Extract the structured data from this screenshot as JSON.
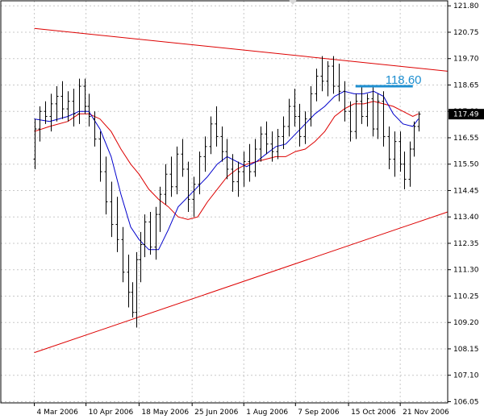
{
  "chart_data": {
    "type": "ohlc",
    "title": "",
    "ylim": [
      106.0,
      122.0
    ],
    "y_ticks": [
      "121.80",
      "120.75",
      "119.70",
      "118.65",
      "117.60",
      "116.55",
      "115.50",
      "114.45",
      "113.40",
      "112.35",
      "111.30",
      "110.25",
      "109.20",
      "108.15",
      "107.10",
      "106.05"
    ],
    "x_ticks": [
      "4 Mar 2006",
      "10 Apr 2006",
      "18 May 2006",
      "25 Jun 2006",
      "1 Aug 2006",
      "7 Sep 2006",
      "15 Oct 2006",
      "21 Nov 2006"
    ],
    "current_price": "117.49",
    "level_label": "118.60",
    "level_value": 118.6,
    "grid": true,
    "colors": {
      "bars": "#000000",
      "ma_fast": "#0000cc",
      "ma_slow": "#dd0000",
      "trendline": "#dd0000",
      "level": "#1e8fd0",
      "price_box": "#000000"
    },
    "trendlines": [
      {
        "name": "upper",
        "from": {
          "date": "2006-03-04",
          "value": 120.9
        },
        "to": {
          "date": "2006-12-25",
          "value": 119.2
        }
      },
      {
        "name": "lower",
        "from": {
          "date": "2006-03-04",
          "value": 108.0
        },
        "to": {
          "date": "2006-12-25",
          "value": 113.6
        }
      }
    ],
    "level_line": {
      "from": "2006-10-20",
      "to": "2006-11-30",
      "value": 118.6
    },
    "series": [
      {
        "name": "",
        "kind": "ma_fast",
        "points": [
          [
            "2006-03-04",
            117.3
          ],
          [
            "2006-03-15",
            117.2
          ],
          [
            "2006-03-28",
            117.4
          ],
          [
            "2006-04-05",
            117.6
          ],
          [
            "2006-04-12",
            117.6
          ],
          [
            "2006-04-20",
            116.9
          ],
          [
            "2006-04-28",
            115.8
          ],
          [
            "2006-05-05",
            114.3
          ],
          [
            "2006-05-12",
            113.0
          ],
          [
            "2006-05-18",
            112.5
          ],
          [
            "2006-05-25",
            112.1
          ],
          [
            "2006-06-01",
            112.1
          ],
          [
            "2006-06-08",
            112.9
          ],
          [
            "2006-06-15",
            113.8
          ],
          [
            "2006-06-22",
            114.2
          ],
          [
            "2006-06-29",
            114.6
          ],
          [
            "2006-07-06",
            115.0
          ],
          [
            "2006-07-13",
            115.5
          ],
          [
            "2006-07-20",
            115.8
          ],
          [
            "2006-07-27",
            115.6
          ],
          [
            "2006-08-03",
            115.4
          ],
          [
            "2006-08-10",
            115.6
          ],
          [
            "2006-08-17",
            115.9
          ],
          [
            "2006-08-24",
            116.2
          ],
          [
            "2006-08-31",
            116.3
          ],
          [
            "2006-09-07",
            116.7
          ],
          [
            "2006-09-14",
            117.1
          ],
          [
            "2006-09-21",
            117.5
          ],
          [
            "2006-09-28",
            117.8
          ],
          [
            "2006-10-05",
            118.2
          ],
          [
            "2006-10-12",
            118.4
          ],
          [
            "2006-10-19",
            118.3
          ],
          [
            "2006-10-26",
            118.3
          ],
          [
            "2006-11-02",
            118.4
          ],
          [
            "2006-11-09",
            118.2
          ],
          [
            "2006-11-16",
            117.5
          ],
          [
            "2006-11-23",
            117.1
          ],
          [
            "2006-11-30",
            117.0
          ],
          [
            "2006-12-04",
            117.3
          ]
        ]
      },
      {
        "name": "",
        "kind": "ma_slow",
        "points": [
          [
            "2006-03-04",
            116.8
          ],
          [
            "2006-03-15",
            117.0
          ],
          [
            "2006-03-28",
            117.2
          ],
          [
            "2006-04-05",
            117.5
          ],
          [
            "2006-04-12",
            117.5
          ],
          [
            "2006-04-20",
            117.3
          ],
          [
            "2006-04-28",
            116.8
          ],
          [
            "2006-05-05",
            116.1
          ],
          [
            "2006-05-12",
            115.5
          ],
          [
            "2006-05-18",
            115.1
          ],
          [
            "2006-05-25",
            114.5
          ],
          [
            "2006-06-01",
            114.1
          ],
          [
            "2006-06-08",
            113.8
          ],
          [
            "2006-06-15",
            113.4
          ],
          [
            "2006-06-22",
            113.3
          ],
          [
            "2006-06-29",
            113.4
          ],
          [
            "2006-07-06",
            114.0
          ],
          [
            "2006-07-13",
            114.5
          ],
          [
            "2006-07-20",
            115.0
          ],
          [
            "2006-07-27",
            115.3
          ],
          [
            "2006-08-03",
            115.5
          ],
          [
            "2006-08-10",
            115.6
          ],
          [
            "2006-08-17",
            115.7
          ],
          [
            "2006-08-24",
            115.8
          ],
          [
            "2006-08-31",
            115.8
          ],
          [
            "2006-09-07",
            116.0
          ],
          [
            "2006-09-14",
            116.1
          ],
          [
            "2006-09-21",
            116.4
          ],
          [
            "2006-09-28",
            116.8
          ],
          [
            "2006-10-05",
            117.4
          ],
          [
            "2006-10-12",
            117.7
          ],
          [
            "2006-10-19",
            117.9
          ],
          [
            "2006-10-26",
            117.9
          ],
          [
            "2006-11-02",
            118.0
          ],
          [
            "2006-11-09",
            117.9
          ],
          [
            "2006-11-16",
            117.8
          ],
          [
            "2006-11-23",
            117.6
          ],
          [
            "2006-11-30",
            117.4
          ],
          [
            "2006-12-04",
            117.5
          ]
        ]
      },
      {
        "name": "",
        "kind": "ohlc",
        "columns": [
          "date",
          "open",
          "high",
          "low",
          "close"
        ],
        "points": [
          [
            "2006-03-04",
            115.7,
            117.3,
            115.3,
            116.9
          ],
          [
            "2006-03-08",
            116.9,
            117.8,
            116.4,
            117.6
          ],
          [
            "2006-03-12",
            117.6,
            118.0,
            117.1,
            117.4
          ],
          [
            "2006-03-16",
            117.4,
            118.3,
            116.8,
            117.9
          ],
          [
            "2006-03-20",
            117.9,
            118.6,
            117.2,
            118.2
          ],
          [
            "2006-03-24",
            118.2,
            118.8,
            117.3,
            117.7
          ],
          [
            "2006-03-28",
            117.7,
            118.4,
            117.2,
            118.0
          ],
          [
            "2006-04-01",
            118.0,
            118.5,
            117.0,
            117.5
          ],
          [
            "2006-04-05",
            117.5,
            118.9,
            117.1,
            118.6
          ],
          [
            "2006-04-09",
            118.6,
            118.9,
            117.5,
            117.8
          ],
          [
            "2006-04-12",
            117.8,
            118.3,
            117.0,
            117.4
          ],
          [
            "2006-04-16",
            117.3,
            117.6,
            116.2,
            116.5
          ],
          [
            "2006-04-20",
            116.5,
            116.8,
            114.8,
            115.2
          ],
          [
            "2006-04-24",
            115.2,
            115.8,
            113.5,
            114.0
          ],
          [
            "2006-04-28",
            114.0,
            114.8,
            112.6,
            113.1
          ],
          [
            "2006-05-02",
            113.1,
            114.2,
            112.0,
            112.5
          ],
          [
            "2006-05-06",
            112.5,
            113.0,
            110.8,
            111.2
          ],
          [
            "2006-05-10",
            111.2,
            111.9,
            109.8,
            110.4
          ],
          [
            "2006-05-13",
            110.4,
            110.8,
            109.4,
            109.6
          ],
          [
            "2006-05-16",
            109.6,
            112.0,
            109.0,
            111.7
          ],
          [
            "2006-05-19",
            111.7,
            112.8,
            110.8,
            112.3
          ],
          [
            "2006-05-22",
            112.3,
            113.5,
            111.8,
            113.2
          ],
          [
            "2006-05-26",
            113.2,
            113.6,
            111.9,
            112.2
          ],
          [
            "2006-05-30",
            112.2,
            113.8,
            111.7,
            113.5
          ],
          [
            "2006-06-02",
            113.5,
            114.6,
            112.8,
            114.3
          ],
          [
            "2006-06-06",
            114.3,
            115.5,
            113.9,
            115.1
          ],
          [
            "2006-06-10",
            115.1,
            115.8,
            114.2,
            114.6
          ],
          [
            "2006-06-14",
            114.6,
            116.2,
            114.3,
            115.9
          ],
          [
            "2006-06-18",
            115.9,
            116.5,
            115.0,
            115.3
          ],
          [
            "2006-06-22",
            115.3,
            115.6,
            113.6,
            114.1
          ],
          [
            "2006-06-26",
            114.1,
            115.0,
            113.4,
            114.7
          ],
          [
            "2006-06-30",
            114.7,
            116.0,
            114.3,
            115.8
          ],
          [
            "2006-07-04",
            115.8,
            116.6,
            115.2,
            116.2
          ],
          [
            "2006-07-08",
            116.2,
            117.4,
            115.9,
            117.1
          ],
          [
            "2006-07-12",
            117.1,
            117.8,
            116.2,
            116.6
          ],
          [
            "2006-07-16",
            116.6,
            117.0,
            115.6,
            116.0
          ],
          [
            "2006-07-20",
            116.0,
            116.5,
            114.9,
            115.3
          ],
          [
            "2006-07-24",
            115.3,
            115.9,
            114.4,
            114.8
          ],
          [
            "2006-07-28",
            114.8,
            115.6,
            114.2,
            115.2
          ],
          [
            "2006-08-01",
            115.2,
            116.0,
            114.6,
            115.6
          ],
          [
            "2006-08-05",
            115.6,
            116.3,
            114.8,
            115.2
          ],
          [
            "2006-08-09",
            115.2,
            116.5,
            115.0,
            116.1
          ],
          [
            "2006-08-13",
            116.1,
            117.0,
            115.6,
            116.7
          ],
          [
            "2006-08-17",
            116.7,
            117.2,
            115.9,
            116.3
          ],
          [
            "2006-08-21",
            116.3,
            116.8,
            115.6,
            116.0
          ],
          [
            "2006-08-25",
            116.0,
            116.9,
            115.7,
            116.6
          ],
          [
            "2006-08-29",
            116.6,
            117.4,
            116.1,
            117.0
          ],
          [
            "2006-09-02",
            117.0,
            118.1,
            116.6,
            117.8
          ],
          [
            "2006-09-06",
            117.8,
            118.5,
            117.0,
            117.4
          ],
          [
            "2006-09-10",
            117.4,
            117.9,
            116.2,
            116.6
          ],
          [
            "2006-09-14",
            116.6,
            117.6,
            116.3,
            117.3
          ],
          [
            "2006-09-18",
            117.3,
            118.6,
            117.0,
            118.3
          ],
          [
            "2006-09-22",
            118.3,
            119.3,
            118.0,
            119.0
          ],
          [
            "2006-09-26",
            119.0,
            119.8,
            118.4,
            118.8
          ],
          [
            "2006-09-30",
            118.8,
            119.6,
            118.2,
            119.4
          ],
          [
            "2006-10-04",
            119.4,
            119.8,
            118.3,
            118.6
          ],
          [
            "2006-10-08",
            118.6,
            119.5,
            118.0,
            118.4
          ],
          [
            "2006-10-12",
            118.4,
            118.8,
            117.2,
            117.6
          ],
          [
            "2006-10-16",
            117.6,
            118.0,
            116.4,
            116.8
          ],
          [
            "2006-10-20",
            116.8,
            118.3,
            116.5,
            118.0
          ],
          [
            "2006-10-24",
            118.0,
            118.6,
            117.1,
            117.4
          ],
          [
            "2006-10-28",
            117.4,
            118.3,
            117.0,
            118.1
          ],
          [
            "2006-11-01",
            118.1,
            118.6,
            116.6,
            116.9
          ],
          [
            "2006-11-05",
            116.9,
            118.3,
            116.5,
            118.0
          ],
          [
            "2006-11-09",
            118.0,
            118.4,
            116.2,
            116.6
          ],
          [
            "2006-11-13",
            116.6,
            117.0,
            115.3,
            115.7
          ],
          [
            "2006-11-17",
            115.7,
            116.8,
            115.0,
            116.4
          ],
          [
            "2006-11-21",
            116.4,
            116.8,
            115.2,
            115.5
          ],
          [
            "2006-11-24",
            115.5,
            116.0,
            114.5,
            114.9
          ],
          [
            "2006-11-28",
            114.9,
            116.4,
            114.6,
            116.1
          ],
          [
            "2006-12-01",
            116.1,
            117.2,
            115.8,
            117.0
          ],
          [
            "2006-12-04",
            117.0,
            117.6,
            116.8,
            117.49
          ]
        ]
      }
    ]
  }
}
